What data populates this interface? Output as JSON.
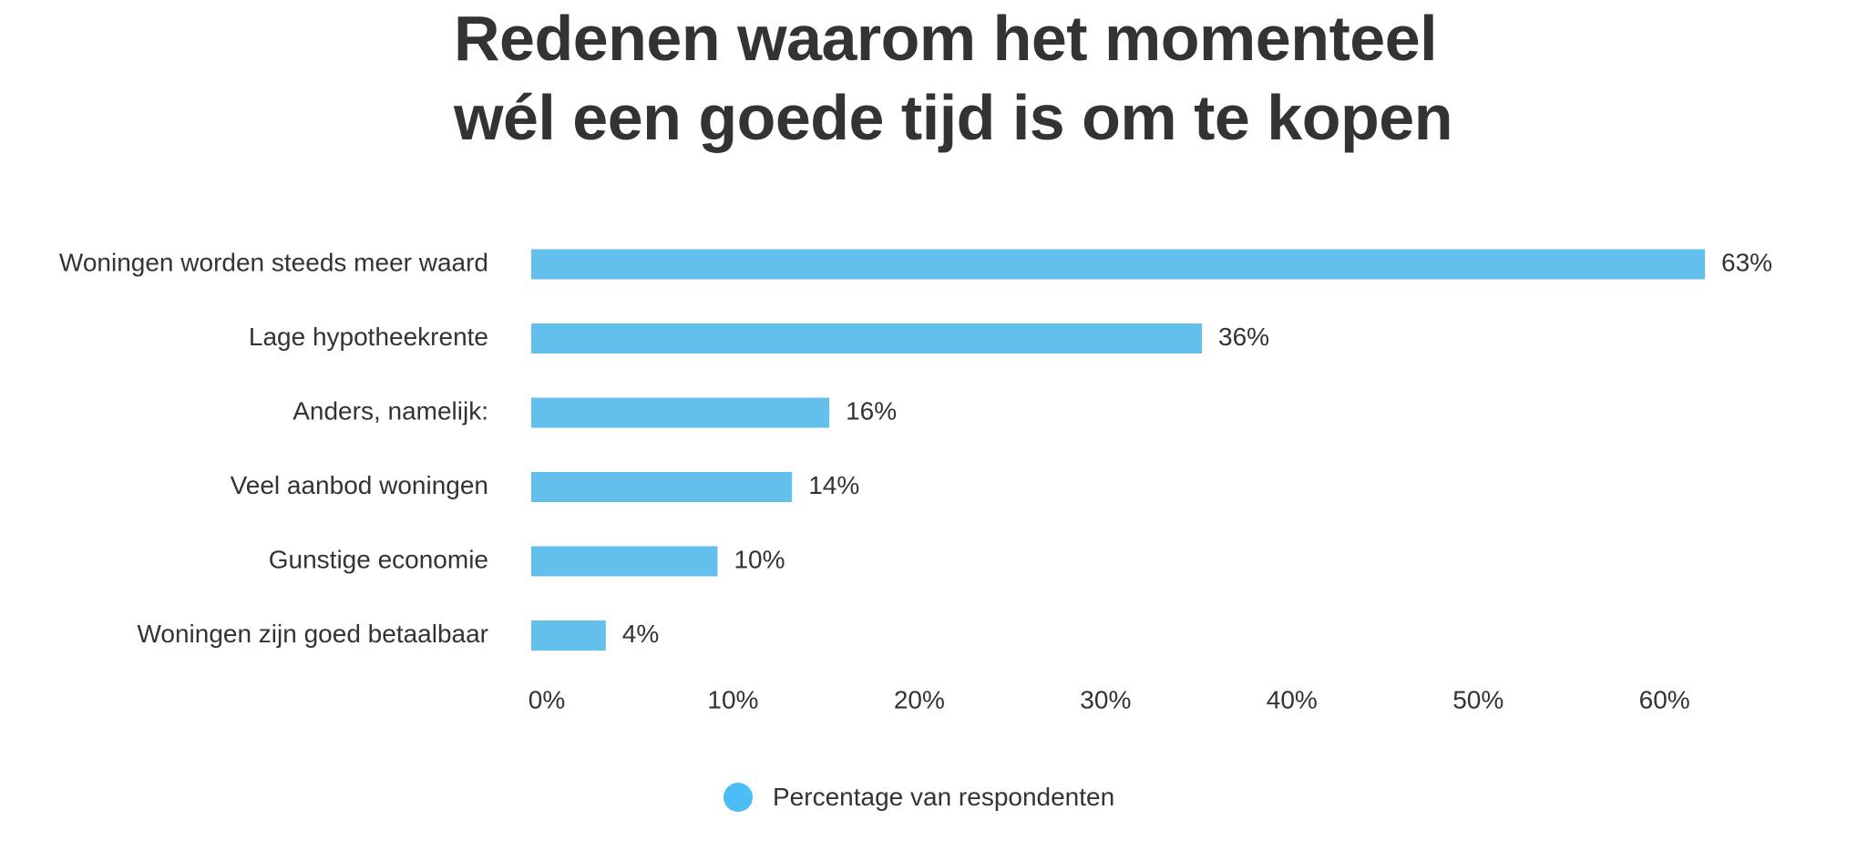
{
  "chart_data": {
    "type": "bar",
    "orientation": "horizontal",
    "title_lines": [
      "Redenen waarom het momenteel",
      "wél een goede tijd is om te kopen"
    ],
    "categories": [
      "Woningen worden steeds meer waard",
      "Lage hypotheekrente",
      "Anders, namelijk:",
      "Veel aanbod woningen",
      "Gunstige economie",
      "Woningen zijn goed betaalbaar"
    ],
    "series": [
      {
        "name": "Percentage van respondenten",
        "values": [
          63,
          36,
          16,
          14,
          10,
          4
        ],
        "value_labels": [
          "63%",
          "36%",
          "16%",
          "14%",
          "10%",
          "4%"
        ],
        "color": "#63C0EC"
      }
    ],
    "xlim": [
      0,
      70
    ],
    "x_ticks": [
      0,
      10,
      20,
      30,
      40,
      50,
      60
    ],
    "x_tick_labels": [
      "0%",
      "10%",
      "20%",
      "30%",
      "40%",
      "50%",
      "60%"
    ],
    "grid": false,
    "legend": {
      "position": "bottom-center",
      "marker_color": "#4DBDF5"
    }
  }
}
